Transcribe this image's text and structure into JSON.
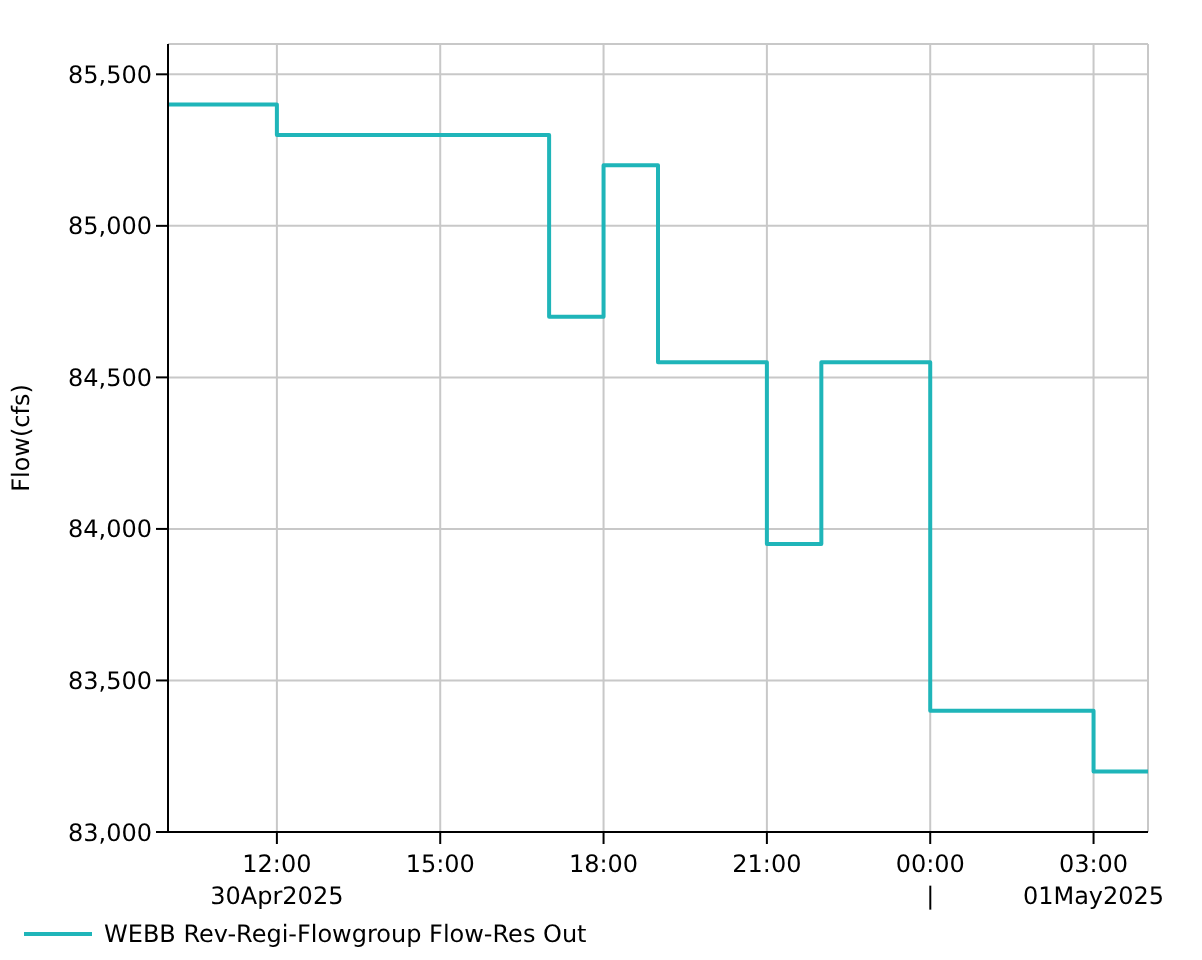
{
  "chart_data": {
    "type": "step",
    "ylabel": "Flow(cfs)",
    "x": [
      "2025-04-30T10:00",
      "2025-04-30T12:00",
      "2025-04-30T17:00",
      "2025-04-30T18:00",
      "2025-04-30T19:00",
      "2025-04-30T21:00",
      "2025-04-30T22:00",
      "2025-05-01T00:00",
      "2025-05-01T03:00",
      "2025-05-01T04:00"
    ],
    "series": [
      {
        "name": "WEBB Rev-Regi-Flowgroup Flow-Res Out",
        "color": "#1fb5b9",
        "values": [
          85400,
          85300,
          84700,
          85200,
          84550,
          83950,
          84550,
          83400,
          83200,
          83200
        ]
      }
    ],
    "xlim": [
      "2025-04-30T10:00",
      "2025-05-01T04:00"
    ],
    "xticks": [
      {
        "value": "2025-04-30T12:00",
        "label": "12:00\n30Apr2025"
      },
      {
        "value": "2025-04-30T15:00",
        "label": "15:00"
      },
      {
        "value": "2025-04-30T18:00",
        "label": "18:00"
      },
      {
        "value": "2025-04-30T21:00",
        "label": "21:00"
      },
      {
        "value": "2025-05-01T00:00",
        "label": "00:00\n|"
      },
      {
        "value": "2025-05-01T03:00",
        "label": "03:00\n01May2025"
      }
    ],
    "ylim": [
      83000,
      85600
    ],
    "yticks": [
      {
        "value": 83000,
        "label": "83,000"
      },
      {
        "value": 83500,
        "label": "83,500"
      },
      {
        "value": 84000,
        "label": "84,000"
      },
      {
        "value": 84500,
        "label": "84,500"
      },
      {
        "value": 85000,
        "label": "85,000"
      },
      {
        "value": 85500,
        "label": "85,500"
      }
    ],
    "grid": true,
    "legend": "bottom left",
    "marker": "none",
    "line_style": "solid"
  }
}
